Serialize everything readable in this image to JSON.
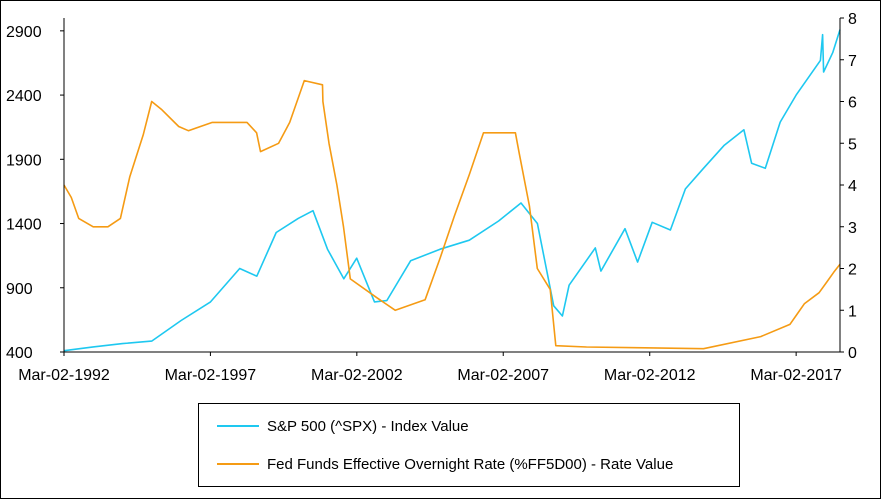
{
  "chart_data": {
    "type": "line",
    "x_tick_labels": [
      "Mar-02-1992",
      "Mar-02-1997",
      "Mar-02-2002",
      "Mar-02-2007",
      "Mar-02-2012",
      "Mar-02-2017"
    ],
    "x_range": [
      "1992-03-02",
      "2018-08-31"
    ],
    "y_left": {
      "ticks": [
        400,
        900,
        1400,
        1900,
        2400,
        2900
      ],
      "range": [
        400,
        3000
      ]
    },
    "y_right": {
      "ticks": [
        0,
        1,
        2,
        3,
        4,
        5,
        6,
        7,
        8
      ],
      "range": [
        0,
        8
      ]
    },
    "grid": false,
    "legend_position": "bottom",
    "series": [
      {
        "name": "S&P 500 (^SPX) - Index Value",
        "axis": "left",
        "color": "#1EC8F0",
        "points": [
          [
            "1992-03-02",
            410
          ],
          [
            "1993-03-01",
            440
          ],
          [
            "1994-03-01",
            465
          ],
          [
            "1995-03-01",
            485
          ],
          [
            "1996-03-01",
            645
          ],
          [
            "1997-03-03",
            790
          ],
          [
            "1998-03-02",
            1050
          ],
          [
            "1998-10-01",
            990
          ],
          [
            "1999-06-01",
            1330
          ],
          [
            "2000-03-01",
            1440
          ],
          [
            "2000-09-01",
            1500
          ],
          [
            "2001-03-01",
            1200
          ],
          [
            "2001-09-20",
            970
          ],
          [
            "2002-03-01",
            1130
          ],
          [
            "2002-10-09",
            790
          ],
          [
            "2003-03-11",
            800
          ],
          [
            "2004-01-02",
            1110
          ],
          [
            "2005-01-03",
            1200
          ],
          [
            "2006-01-03",
            1270
          ],
          [
            "2007-01-03",
            1420
          ],
          [
            "2007-10-09",
            1560
          ],
          [
            "2008-05-01",
            1400
          ],
          [
            "2008-11-20",
            760
          ],
          [
            "2009-03-09",
            680
          ],
          [
            "2009-06-01",
            920
          ],
          [
            "2010-04-23",
            1210
          ],
          [
            "2010-07-02",
            1030
          ],
          [
            "2011-04-29",
            1360
          ],
          [
            "2011-10-03",
            1100
          ],
          [
            "2012-04-02",
            1410
          ],
          [
            "2012-11-15",
            1350
          ],
          [
            "2013-05-21",
            1670
          ],
          [
            "2014-01-02",
            1830
          ],
          [
            "2014-09-18",
            2010
          ],
          [
            "2015-05-21",
            2130
          ],
          [
            "2015-08-25",
            1870
          ],
          [
            "2016-02-11",
            1830
          ],
          [
            "2016-08-15",
            2190
          ],
          [
            "2017-03-01",
            2400
          ],
          [
            "2017-12-29",
            2670
          ],
          [
            "2018-01-26",
            2870
          ],
          [
            "2018-02-08",
            2580
          ],
          [
            "2018-06-01",
            2730
          ],
          [
            "2018-08-31",
            2910
          ]
        ]
      },
      {
        "name": "Fed Funds Effective Overnight Rate (%FF5D00) - Rate Value",
        "axis": "right",
        "color": "#F59B14",
        "points": [
          [
            "1992-03-02",
            4.0
          ],
          [
            "1992-06-01",
            3.7
          ],
          [
            "1992-09-01",
            3.2
          ],
          [
            "1993-03-01",
            3.0
          ],
          [
            "1993-09-01",
            3.0
          ],
          [
            "1994-02-04",
            3.2
          ],
          [
            "1994-06-01",
            4.2
          ],
          [
            "1994-11-15",
            5.2
          ],
          [
            "1995-03-01",
            6.0
          ],
          [
            "1995-07-06",
            5.8
          ],
          [
            "1996-01-31",
            5.4
          ],
          [
            "1996-06-01",
            5.3
          ],
          [
            "1997-03-25",
            5.5
          ],
          [
            "1998-06-01",
            5.5
          ],
          [
            "1998-09-29",
            5.25
          ],
          [
            "1998-11-17",
            4.8
          ],
          [
            "1999-06-30",
            5.0
          ],
          [
            "1999-11-16",
            5.5
          ],
          [
            "2000-05-16",
            6.5
          ],
          [
            "2000-12-29",
            6.4
          ],
          [
            "2001-01-03",
            6.0
          ],
          [
            "2001-03-20",
            5.0
          ],
          [
            "2001-06-27",
            4.0
          ],
          [
            "2001-09-17",
            3.0
          ],
          [
            "2001-12-11",
            1.75
          ],
          [
            "2002-11-06",
            1.3
          ],
          [
            "2003-06-25",
            1.0
          ],
          [
            "2004-06-30",
            1.25
          ],
          [
            "2005-01-03",
            2.25
          ],
          [
            "2005-06-30",
            3.25
          ],
          [
            "2006-01-03",
            4.25
          ],
          [
            "2006-06-29",
            5.25
          ],
          [
            "2007-08-01",
            5.25
          ],
          [
            "2007-09-18",
            4.75
          ],
          [
            "2008-01-22",
            3.5
          ],
          [
            "2008-04-30",
            2.0
          ],
          [
            "2008-10-08",
            1.5
          ],
          [
            "2008-12-16",
            0.15
          ],
          [
            "2010-01-04",
            0.12
          ],
          [
            "2012-01-03",
            0.1
          ],
          [
            "2014-01-02",
            0.08
          ],
          [
            "2015-12-16",
            0.37
          ],
          [
            "2016-12-14",
            0.66
          ],
          [
            "2017-03-15",
            0.91
          ],
          [
            "2017-06-14",
            1.16
          ],
          [
            "2017-12-13",
            1.42
          ],
          [
            "2018-03-21",
            1.68
          ],
          [
            "2018-06-13",
            1.91
          ],
          [
            "2018-08-31",
            2.1
          ]
        ]
      }
    ]
  }
}
